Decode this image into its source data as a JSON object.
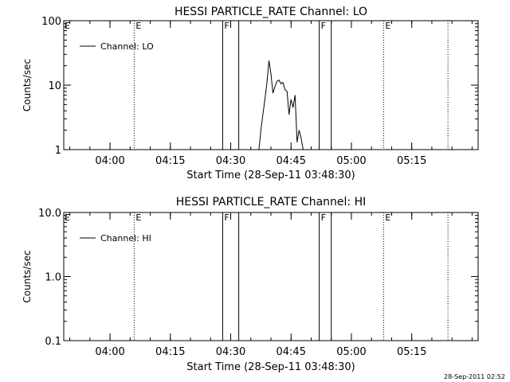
{
  "footer_timestamp": "28-Sep-2011 02:52",
  "chart_data": [
    {
      "type": "line",
      "title": "HESSI PARTICLE_RATE Channel: LO",
      "ylabel": "Counts/sec",
      "xlabel": "Start Time (28-Sep-11 03:48:30)",
      "yscale": "log",
      "ylim": [
        1,
        100
      ],
      "ytick_labels": [
        "1",
        "10",
        "100"
      ],
      "xtick_labels": [
        "04:00",
        "04:15",
        "04:30",
        "04:45",
        "05:00",
        "05:15"
      ],
      "legend": {
        "placement": "top-left",
        "entries": [
          "Channel: LO"
        ]
      },
      "vlines": [
        {
          "time": "04:06",
          "style": "dotted",
          "label": "E"
        },
        {
          "time": "04:28",
          "style": "solid",
          "label": "F"
        },
        {
          "time": "04:32",
          "style": "solid",
          "label": ""
        },
        {
          "time": "04:52",
          "style": "solid",
          "label": "F"
        },
        {
          "time": "04:55",
          "style": "solid",
          "label": ""
        },
        {
          "time": "05:08",
          "style": "dotted",
          "label": "E"
        },
        {
          "time": "05:24",
          "style": "dotted",
          "label": ""
        }
      ],
      "left_marker": "E",
      "series": [
        {
          "name": "Channel: LO",
          "x": [
            "04:37",
            "04:37:30",
            "04:38",
            "04:38:30",
            "04:39",
            "04:39:30",
            "04:40",
            "04:40:30",
            "04:41",
            "04:41:30",
            "04:42",
            "04:42:30",
            "04:43",
            "04:43:30",
            "04:44",
            "04:44:30",
            "04:45",
            "04:45:30",
            "04:46",
            "04:46:30",
            "04:47",
            "04:47:30",
            "04:48"
          ],
          "values": [
            1.0,
            2.0,
            3.5,
            6.0,
            11.0,
            24.0,
            15.0,
            7.5,
            9.5,
            11.5,
            12.0,
            10.5,
            11.0,
            8.5,
            8.0,
            3.5,
            6.0,
            4.5,
            7.0,
            1.3,
            2.0,
            1.5,
            1.0
          ]
        }
      ]
    },
    {
      "type": "line",
      "title": "HESSI PARTICLE_RATE Channel: HI",
      "ylabel": "Counts/sec",
      "xlabel": "Start Time (28-Sep-11 03:48:30)",
      "yscale": "log",
      "ylim": [
        0.1,
        10
      ],
      "ytick_labels": [
        "0.1",
        "1.0",
        "10.0"
      ],
      "xtick_labels": [
        "04:00",
        "04:15",
        "04:30",
        "04:45",
        "05:00",
        "05:15"
      ],
      "legend": {
        "placement": "top-left",
        "entries": [
          "Channel: HI"
        ]
      },
      "vlines": [
        {
          "time": "04:06",
          "style": "dotted",
          "label": "E"
        },
        {
          "time": "04:28",
          "style": "solid",
          "label": "F"
        },
        {
          "time": "04:32",
          "style": "solid",
          "label": ""
        },
        {
          "time": "04:52",
          "style": "solid",
          "label": "F"
        },
        {
          "time": "04:55",
          "style": "solid",
          "label": ""
        },
        {
          "time": "05:08",
          "style": "dotted",
          "label": "E"
        },
        {
          "time": "05:24",
          "style": "dotted",
          "label": ""
        }
      ],
      "left_marker": "E",
      "series": [
        {
          "name": "Channel: HI",
          "x": [],
          "values": []
        }
      ]
    }
  ]
}
